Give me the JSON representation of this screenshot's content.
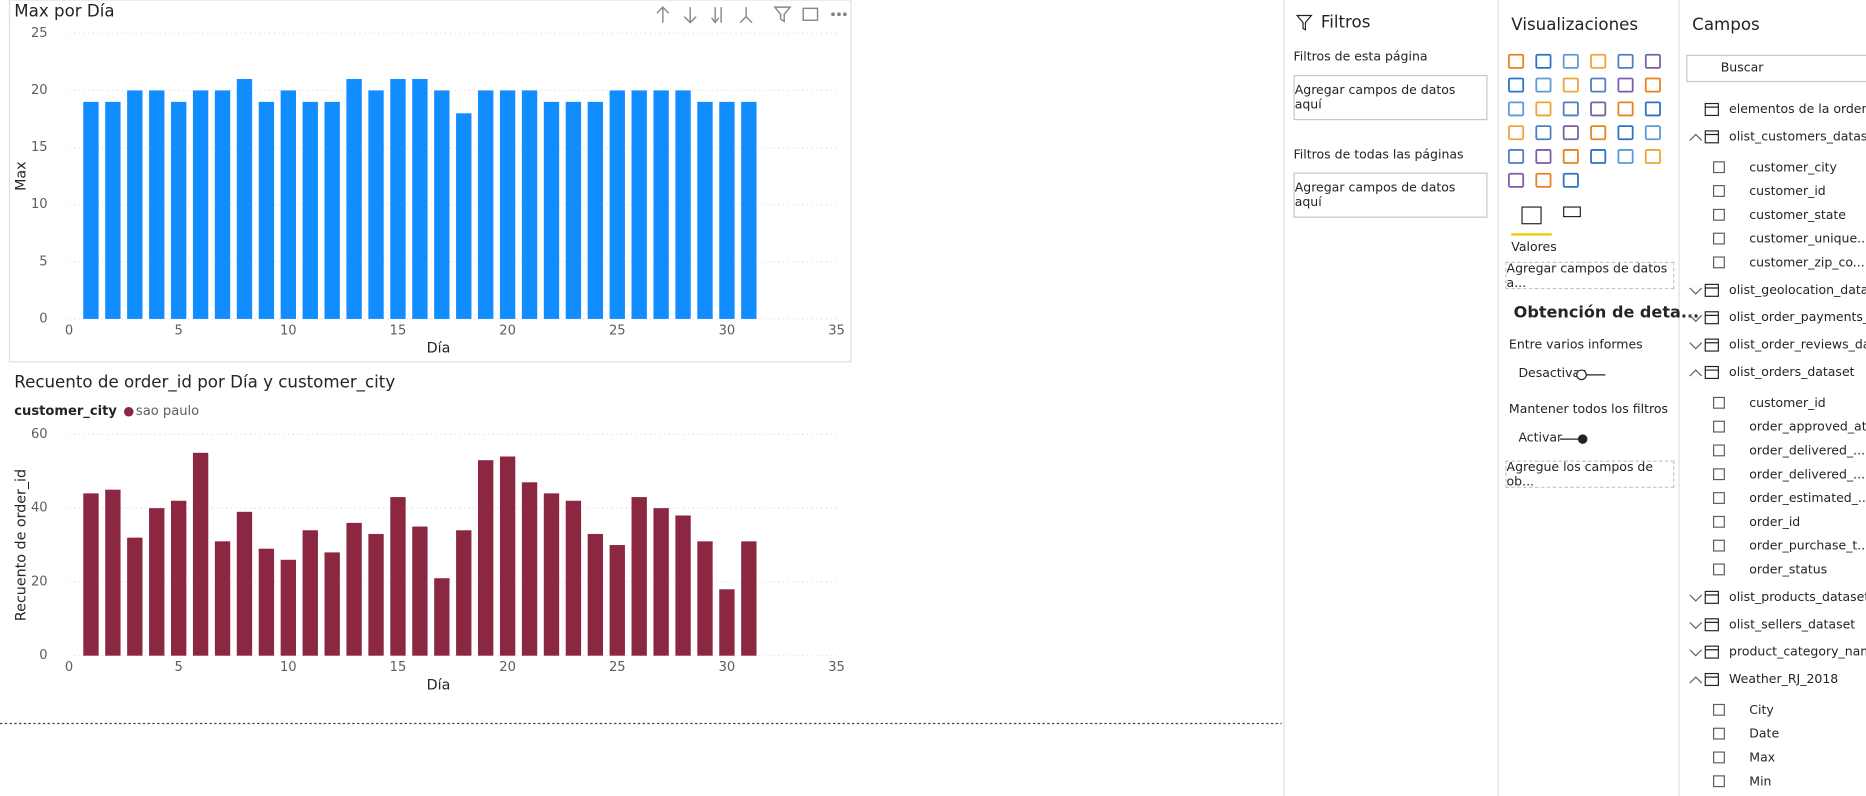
{
  "chart_data": [
    {
      "type": "bar",
      "title": "Max por Día",
      "x_label": "Día",
      "y_label": "Max",
      "color": "#118dff",
      "x": [
        1,
        2,
        3,
        4,
        5,
        6,
        7,
        8,
        9,
        10,
        11,
        12,
        13,
        14,
        15,
        16,
        17,
        18,
        19,
        20,
        21,
        22,
        23,
        24,
        25,
        26,
        27,
        28,
        29,
        30,
        31
      ],
      "values": [
        19,
        19,
        20,
        20,
        19,
        20,
        20,
        21,
        19,
        20,
        19,
        19,
        21,
        20,
        21,
        21,
        20,
        18,
        20,
        20,
        20,
        19,
        19,
        19,
        20,
        20,
        20,
        20,
        19,
        19,
        19
      ],
      "xlim": [
        0,
        35
      ],
      "xticks": [
        0,
        5,
        10,
        15,
        20,
        25,
        30,
        35
      ],
      "ylim": [
        0,
        25
      ],
      "yticks": [
        0,
        5,
        10,
        15,
        20,
        25
      ],
      "grid": true
    },
    {
      "type": "bar",
      "title": "Recuento de order_id por Día y customer_city",
      "x_label": "Día",
      "y_label": "Recuento de order_id",
      "legend_title": "customer_city",
      "x": [
        1,
        2,
        3,
        4,
        5,
        6,
        7,
        8,
        9,
        10,
        11,
        12,
        13,
        14,
        15,
        16,
        17,
        18,
        19,
        20,
        21,
        22,
        23,
        24,
        25,
        26,
        27,
        28,
        29,
        30,
        31
      ],
      "series": [
        {
          "name": "sao paulo",
          "color": "#8b2741",
          "values": [
            44,
            45,
            32,
            40,
            42,
            55,
            31,
            39,
            29,
            26,
            34,
            28,
            36,
            33,
            43,
            35,
            21,
            34,
            53,
            54,
            47,
            44,
            42,
            33,
            30,
            43,
            40,
            38,
            31,
            18,
            31
          ]
        }
      ],
      "xlim": [
        0,
        35
      ],
      "xticks": [
        0,
        5,
        10,
        15,
        20,
        25,
        30,
        35
      ],
      "ylim": [
        0,
        60
      ],
      "yticks": [
        0,
        20,
        40,
        60
      ],
      "grid": true
    }
  ],
  "filters": {
    "title": "Filtros",
    "this_page": "Filtros de esta página",
    "this_page_drop": "Agregar campos de datos aquí",
    "all_pages": "Filtros de todas las páginas",
    "all_pages_drop": "Agregar campos de datos aquí"
  },
  "visualizations": {
    "title": "Visualizaciones",
    "values_label": "Valores",
    "values_drop": "Agregar campos de datos a...",
    "drillthrough": "Obtención de deta...",
    "cross_report": "Entre varios informes",
    "cross_report_toggle": "Desactivar",
    "keep_filters": "Mantener todos los filtros",
    "keep_filters_toggle": "Activar",
    "drill_drop": "Agregue los campos de ob..."
  },
  "fields": {
    "title": "Campos",
    "search": "Buscar",
    "tables": [
      {
        "name": "elementos de la orden",
        "fields": []
      },
      {
        "name": "olist_customers_dataset",
        "fields": [
          "customer_city",
          "customer_id",
          "customer_state",
          "customer_unique...",
          "customer_zip_co..."
        ]
      },
      {
        "name": "olist_geolocation_data...",
        "fields": []
      },
      {
        "name": "olist_order_payments_...",
        "fields": []
      },
      {
        "name": "olist_order_reviews_dat...",
        "fields": []
      },
      {
        "name": "olist_orders_dataset",
        "fields": [
          "customer_id",
          "order_approved_at",
          "order_delivered_...",
          "order_delivered_...",
          "order_estimated_...",
          "order_id",
          "order_purchase_t...",
          "order_status"
        ]
      },
      {
        "name": "olist_products_dataset",
        "fields": []
      },
      {
        "name": "olist_sellers_dataset",
        "fields": []
      },
      {
        "name": "product_category_nam...",
        "fields": []
      },
      {
        "name": "Weather_RJ_2018",
        "fields": [
          "City",
          "Date",
          "Max",
          "Min"
        ]
      }
    ]
  }
}
